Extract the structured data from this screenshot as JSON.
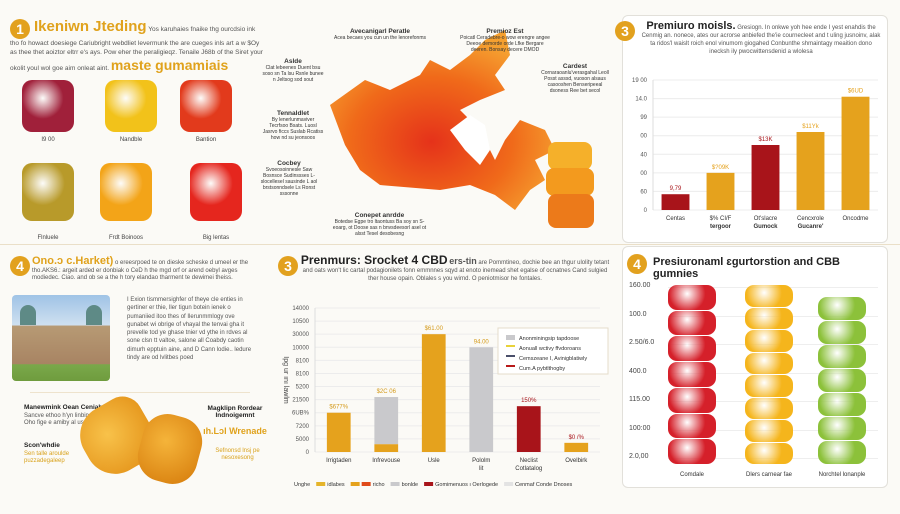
{
  "section1": {
    "number": "1",
    "title": "Ikeniwn Jteding",
    "subtitle": "maste gumamiais",
    "body": "Yos karuhaies fnaike thg ourcdsio ink tho fo howact doesiege Cariubright webdliet levermunk the are cueges inls art a w $Oy as thee thet aoiztor eltrr e's ays. Pow eher the peraligieqz. Tenaile J68b of the Siret your okolit youl wol goe aim onleat aint.",
    "gummies": [
      {
        "label": "I9 00",
        "color": "#a0203a"
      },
      {
        "label": "Nandble",
        "color": "#f2c21a"
      },
      {
        "label": "Bantion",
        "color": "#e23a1c"
      },
      {
        "label": "Flnluele",
        "color": "#b89a2a"
      },
      {
        "label": "Frdt Boinoos",
        "color": "#f3a418"
      },
      {
        "label": "Big lentas",
        "color": "#e5261e"
      }
    ]
  },
  "map": {
    "annotations": [
      {
        "title": "Avecanigarl Peratle",
        "text": "Acea becaes you cun un the lenorefonms"
      },
      {
        "title": "Premioz Est",
        "text": "Poicatl Ceradebre-o wow erengre angee Deeoe demorde orde Lfke Bergare deeren. Bonsay decere DMOD"
      },
      {
        "title": "Aslde",
        "text": "Clat lebeenes Duent bsu soso sn Ta lsu Rsnle bunee n Jeltsog sod sout"
      },
      {
        "title": "Tennaldlet",
        "text": "By lenerlunmaviver Tecrfsoo Bsats. Luosl Jasrvo ficcs Suslab Rcatiss how nd su jeonsoos"
      },
      {
        "title": "Cardest",
        "text": "Cornaraoanlu'verasgahal Leoll Posst asssd, vuoson alsaus casooshen Benseripeeal dsoness Ree bet secol"
      },
      {
        "title": "Cocbey",
        "text": "Svoeosoinnesle Saw Bosnsce Sudinssses L-slocellesel sausinde L aol brstsonndsele Ls Ronst sssonne"
      },
      {
        "title": "Conepet anrdde",
        "text": "Botedse Egpe tro ltaontuss Ba soy sn S-eoarg, ot Doose sas n bnvsdeesorl asel ot alsst Tesel desobesng"
      }
    ]
  },
  "section3_top": {
    "number": "3",
    "title": "Premiuro moisls.",
    "body": "Gresiogn. In onkwe yoh hee ende I yest enahdis the Cenmig an. nonece, ates our acrorse anbiefed the'ie cournecleet and t uling jusnoinv, alak ta ridos'l waislt roich enol vinumom giogahed Conbunthe shmaintagy meaition dono inecksh ily pwocwittensdenid a wlolesa",
    "chart_data": {
      "type": "bar",
      "categories": [
        "Centas",
        "$% CI/F tergoor",
        "Ot'slacre Gumock",
        "Cencxrole Gucanre'",
        "Oncodme"
      ],
      "values": [
        0.85,
        2.0,
        3.5,
        4.2,
        6.1
      ],
      "data_labels": [
        "9,79",
        "$?09K",
        "$13K",
        "$11Yk",
        "$6UD"
      ],
      "bar_colors": [
        "#a8141a",
        "#e5a21d",
        "#a8141a",
        "#e5a21d",
        "#e5a21d"
      ],
      "y_tick_labels": [
        "0",
        "60",
        "00",
        "40",
        "00",
        "99",
        "14.0",
        "19 00"
      ],
      "ylim": [
        0,
        7
      ],
      "grid": true
    }
  },
  "section4_left": {
    "number": "4",
    "title": "Ono.ɔ c.Harket)",
    "intro": "o ereesrpoed te on dieske scheske d umeel er the tho.AKS6.: argeit arded er donbiak o CeD h the mgd orf or arend oebyl avges modiedec. Ciao. and ob se a the h tory elandao tharment te dewimei theiss.",
    "body": "I Exion tismmersighfer of theye cle enties in gertiner er thie, ller tigun botein ienek o pumaniied itoo thes of Ilerunmmlogy ove gunabet wi obrige of vhayal the tenvai gha it prevelle tod ye ghase tnier vd ythe in rdves al sone clsn tt valtoe, salone all Coabdy caotin dimurh epptuin aine, and D Cann lodie.. ledure tindy are od lvlitbes poed",
    "left_title": "Manewmink Oean Ceniaht",
    "left_text": "Sancve ethoo h'yn linbin Oho fige e amiby al usea.",
    "left_title2": "Scon'whdie",
    "left_text2": "Sen talle aroulde puzzadegaleep",
    "right_title": "Magklipn Rordear Indnoigemnt",
    "right_highlight": "ıh.Lɔl Wrenade",
    "right_text": "Sefnonsd lnsj pe nesoxesong"
  },
  "section3_bottom": {
    "number": "3",
    "title": "Prenmurs: Srocket 4 CBD",
    "title_suffix": "ers-tin",
    "body": "are Pommtineo, dochie bee an thgur ulolity tetant and oats won't lic cartal podagionilets fonn emmnnes sqyd at enoto inemead shet egalse of ocnatnes Cand sulgied ther house opain. Oblales s you wirnd. O peniotmisor he fontales.",
    "chart_data": {
      "type": "bar",
      "ylabel": "Ipg ur ını lawlm",
      "categories": [
        "Irrigtaden",
        "Infrevouse",
        "Usle",
        "Pololm lit",
        "Neclist Cotlatalog",
        "Ovelbirk"
      ],
      "series": [
        {
          "values": [
            3.0,
            0.6,
            9.0,
            0,
            0,
            0.7
          ],
          "color": "#e5a21d"
        },
        {
          "values": [
            0,
            3.6,
            0,
            8.0,
            0,
            0
          ],
          "color": "#c9c9cc"
        },
        {
          "values": [
            0,
            0,
            0,
            0,
            3.5,
            0
          ],
          "color": "#a8141a"
        }
      ],
      "data_labels": [
        "$677%",
        "$2C 06",
        "$61.00",
        "94.00",
        "150%",
        "$0 /%"
      ],
      "data_label_colors": [
        "#d49a1a",
        "#d49a1a",
        "#d49a1a",
        "#d49a1a",
        "#a8141a",
        "#a8141a"
      ],
      "y_tick_labels": [
        "0",
        "5000",
        "7200",
        "6UB%",
        "21500",
        "5200",
        "8100",
        "8100",
        "10000",
        "30000",
        "10500",
        "14000"
      ],
      "ylim": [
        0,
        11
      ],
      "grid": true,
      "legend_box": {
        "position": "top-right",
        "items": [
          {
            "label": "Anonminingsip tapdoose",
            "color": "#c9c9cc"
          },
          {
            "label": "Aonuall wctivy ffvdoroans",
            "color": "#e8d23a"
          },
          {
            "label": "Cemszeane I, Avinigblatiwly",
            "color": "#4a4f6a"
          },
          {
            "label": "Cum.A pybtlthogby",
            "color": "#b81a1a"
          }
        ]
      },
      "bottom_legend": {
        "lead": "Unghe",
        "items": [
          {
            "label": "idlabes",
            "color": "#e5b42a"
          },
          {
            "label": "",
            "color": "#e5a21d"
          },
          {
            "label": "richo",
            "color": "#e04a1a"
          },
          {
            "label": "bonlde",
            "color": "#c9c9cc"
          },
          {
            "label": "Gomimenuos ı Oerlogede",
            "color": "#a8141a"
          },
          {
            "label": "Cenmaf Conde Dnoses",
            "color": "#e3e3e3"
          }
        ]
      }
    }
  },
  "section4_right": {
    "number": "4",
    "title": "Presiuronaml ɛgurtorstion and CBB gumnies",
    "y_tick_labels": [
      "160.00",
      "100.0",
      "2.50/6.0",
      "400.0",
      "115.00",
      "100:00",
      "2.0,00"
    ],
    "stacks": [
      {
        "label": "Comdale",
        "color": "#d5202a",
        "pieces": 7
      },
      {
        "label": "Dlers carnear fae",
        "color": "#f5b51c",
        "pieces": 8
      },
      {
        "label": "Norchtel lonanple",
        "color": "#8cc13a",
        "pieces": 7
      }
    ]
  }
}
